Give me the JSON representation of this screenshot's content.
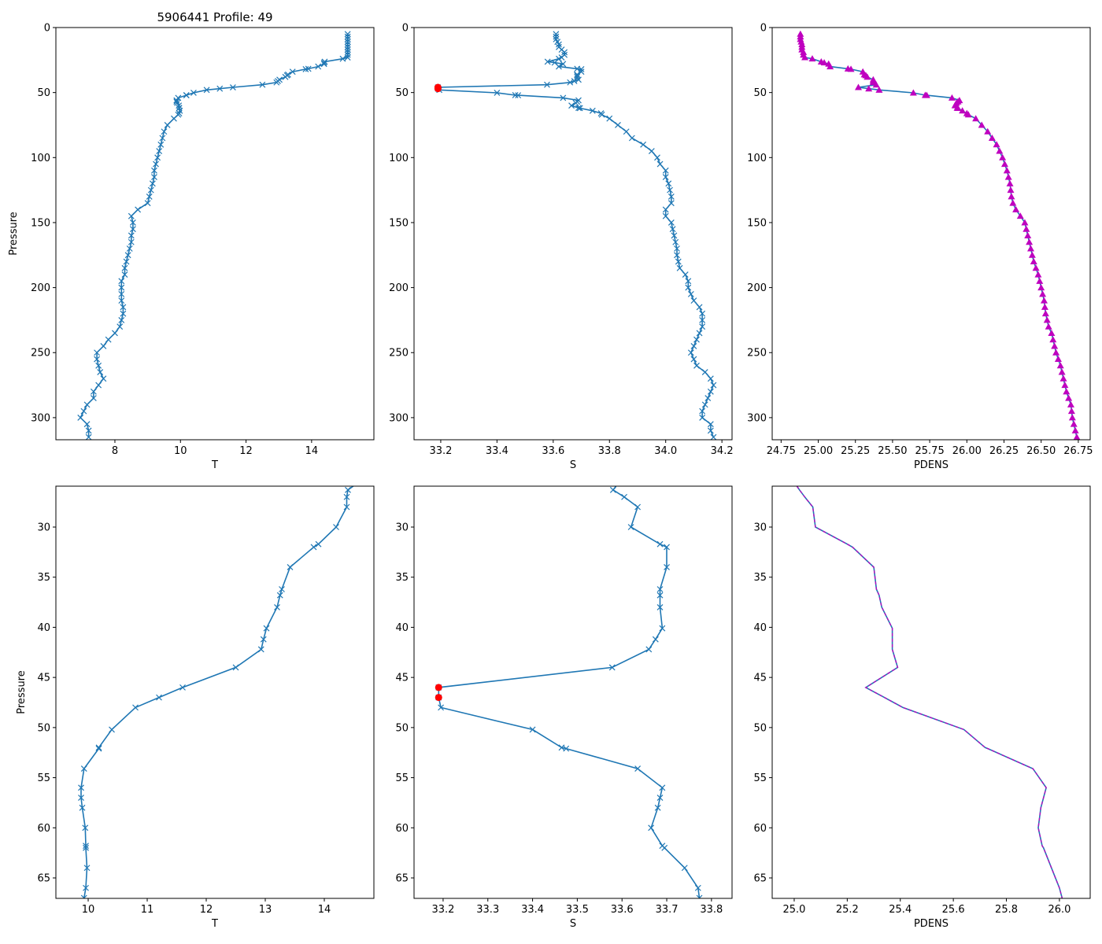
{
  "figure_title": "5906441 Profile: 49",
  "colors": {
    "line": "#1f77b4",
    "flag": "#ff0000",
    "density": "#bf00bf"
  },
  "chart_data": {
    "type": "line",
    "profile": {
      "pressure": [
        5,
        7,
        9,
        11,
        13,
        15,
        17,
        19,
        21,
        23,
        24,
        26.3,
        27,
        28,
        30,
        31.7,
        32,
        34,
        36.2,
        36.8,
        38,
        40.1,
        41.2,
        42.2,
        44,
        46,
        47,
        48,
        50.2,
        52,
        52.1,
        54.1,
        56,
        57,
        58,
        60,
        61.8,
        62,
        64,
        66,
        67,
        70,
        75,
        80,
        85,
        90,
        95,
        100,
        105,
        110,
        115,
        120,
        125,
        130,
        135,
        140,
        145,
        150,
        155,
        160,
        165,
        170,
        175,
        180,
        185,
        190,
        195,
        200,
        205,
        210,
        215,
        220,
        225,
        230,
        235,
        240,
        245,
        250,
        255,
        260,
        265,
        270,
        275,
        280,
        285,
        290,
        295,
        300,
        305,
        310,
        315
      ],
      "T": [
        15.1,
        15.1,
        15.1,
        15.1,
        15.1,
        15.1,
        15.1,
        15.1,
        15.1,
        15.1,
        14.95,
        14.4,
        14.38,
        14.38,
        14.2,
        13.9,
        13.82,
        13.42,
        13.28,
        13.25,
        13.2,
        13.02,
        12.97,
        12.93,
        12.5,
        11.6,
        11.2,
        10.8,
        10.4,
        10.18,
        10.18,
        9.93,
        9.88,
        9.88,
        9.9,
        9.95,
        9.96,
        9.96,
        9.98,
        9.96,
        9.93,
        9.8,
        9.6,
        9.5,
        9.45,
        9.4,
        9.35,
        9.3,
        9.25,
        9.2,
        9.2,
        9.15,
        9.1,
        9.05,
        9.0,
        8.7,
        8.5,
        8.55,
        8.55,
        8.5,
        8.5,
        8.45,
        8.4,
        8.35,
        8.3,
        8.3,
        8.2,
        8.2,
        8.2,
        8.2,
        8.25,
        8.25,
        8.2,
        8.15,
        8.0,
        7.8,
        7.65,
        7.45,
        7.45,
        7.5,
        7.55,
        7.65,
        7.5,
        7.35,
        7.35,
        7.15,
        7.05,
        6.95,
        7.15,
        7.2,
        7.2
      ],
      "S": [
        33.61,
        33.61,
        33.61,
        33.615,
        33.62,
        33.62,
        33.63,
        33.64,
        33.64,
        33.63,
        33.62,
        33.58,
        33.605,
        33.635,
        33.62,
        33.685,
        33.7,
        33.7,
        33.685,
        33.685,
        33.685,
        33.69,
        33.675,
        33.66,
        33.578,
        33.19,
        33.19,
        33.195,
        33.4,
        33.465,
        33.475,
        33.635,
        33.69,
        33.685,
        33.68,
        33.665,
        33.69,
        33.695,
        33.74,
        33.77,
        33.773,
        33.8,
        33.83,
        33.86,
        33.88,
        33.92,
        33.95,
        33.97,
        33.98,
        34.0,
        34.0,
        34.01,
        34.015,
        34.02,
        34.02,
        34.0,
        34.0,
        34.02,
        34.025,
        34.03,
        34.035,
        34.04,
        34.04,
        34.045,
        34.05,
        34.07,
        34.08,
        34.08,
        34.09,
        34.1,
        34.12,
        34.13,
        34.13,
        34.13,
        34.12,
        34.11,
        34.1,
        34.09,
        34.1,
        34.11,
        34.14,
        34.16,
        34.17,
        34.16,
        34.15,
        34.14,
        34.13,
        34.13,
        34.16,
        34.16,
        34.17
      ],
      "PDENS": [
        24.88,
        24.88,
        24.88,
        24.885,
        24.89,
        24.89,
        24.89,
        24.9,
        24.9,
        24.91,
        24.96,
        25.02,
        25.04,
        25.07,
        25.08,
        25.2,
        25.22,
        25.3,
        25.31,
        25.32,
        25.33,
        25.37,
        25.37,
        25.37,
        25.39,
        25.27,
        25.34,
        25.41,
        25.64,
        25.72,
        25.73,
        25.9,
        25.95,
        25.94,
        25.93,
        25.92,
        25.935,
        25.94,
        25.97,
        26.0,
        26.01,
        26.06,
        26.1,
        26.14,
        26.17,
        26.2,
        26.22,
        26.24,
        26.255,
        26.27,
        26.28,
        26.29,
        26.295,
        26.3,
        26.31,
        26.33,
        26.36,
        26.39,
        26.4,
        26.41,
        26.42,
        26.43,
        26.44,
        26.45,
        26.465,
        26.48,
        26.49,
        26.5,
        26.51,
        26.52,
        26.525,
        26.53,
        26.54,
        26.55,
        26.57,
        26.58,
        26.59,
        26.6,
        26.615,
        26.63,
        26.64,
        26.65,
        26.66,
        26.67,
        26.685,
        26.7,
        26.705,
        26.71,
        26.72,
        26.73,
        26.74
      ],
      "flagged_S_pressures": [
        46,
        47
      ]
    },
    "panels": [
      {
        "id": "top-T",
        "var": "T",
        "xlabel": "T",
        "ylabel": "Pressure",
        "xlim": [
          6.2,
          15.9
        ],
        "ylim": [
          317,
          0
        ],
        "xticks": [
          8,
          10,
          12,
          14
        ],
        "xticklabels": [
          "8",
          "10",
          "12",
          "14"
        ],
        "yticks": [
          0,
          50,
          100,
          150,
          200,
          250,
          300
        ],
        "yticklabels": [
          "0",
          "50",
          "100",
          "150",
          "200",
          "250",
          "300"
        ],
        "marker": "x",
        "title": "5906441 Profile: 49"
      },
      {
        "id": "top-S",
        "var": "S",
        "xlabel": "S",
        "ylabel": "",
        "xlim": [
          33.105,
          34.236
        ],
        "ylim": [
          317,
          0
        ],
        "xticks": [
          33.2,
          33.4,
          33.6,
          33.8,
          34.0,
          34.2
        ],
        "xticklabels": [
          "33.2",
          "33.4",
          "33.6",
          "33.8",
          "34.0",
          "34.2"
        ],
        "yticks": [
          0,
          50,
          100,
          150,
          200,
          250,
          300
        ],
        "yticklabels": [
          "0",
          "50",
          "100",
          "150",
          "200",
          "250",
          "300"
        ],
        "marker": "x",
        "flags": true
      },
      {
        "id": "top-PDENS",
        "var": "PDENS",
        "xlabel": "PDENS",
        "ylabel": "",
        "xlim": [
          24.69,
          26.83
        ],
        "ylim": [
          317,
          0
        ],
        "xticks": [
          24.75,
          25.0,
          25.25,
          25.5,
          25.75,
          26.0,
          26.25,
          26.5,
          26.75
        ],
        "xticklabels": [
          "24.75",
          "25.00",
          "25.25",
          "25.50",
          "25.75",
          "26.00",
          "26.25",
          "26.50",
          "26.75"
        ],
        "yticks": [
          0,
          50,
          100,
          150,
          200,
          250,
          300
        ],
        "yticklabels": [
          "0",
          "50",
          "100",
          "150",
          "200",
          "250",
          "300"
        ],
        "marker": "triangle"
      },
      {
        "id": "bottom-T",
        "var": "T",
        "xlabel": "T",
        "ylabel": "Pressure",
        "xlim": [
          9.453,
          14.84
        ],
        "ylim": [
          67.04,
          25.92
        ],
        "xticks": [
          10,
          11,
          12,
          13,
          14
        ],
        "xticklabels": [
          "10",
          "11",
          "12",
          "13",
          "14"
        ],
        "yticks": [
          30,
          35,
          40,
          45,
          50,
          55,
          60,
          65
        ],
        "yticklabels": [
          "30",
          "35",
          "40",
          "45",
          "50",
          "55",
          "60",
          "65"
        ],
        "marker": "x"
      },
      {
        "id": "bottom-S",
        "var": "S",
        "xlabel": "S",
        "ylabel": "",
        "xlim": [
          33.135,
          33.846
        ],
        "ylim": [
          67.04,
          25.92
        ],
        "xticks": [
          33.2,
          33.3,
          33.4,
          33.5,
          33.6,
          33.7,
          33.8
        ],
        "xticklabels": [
          "33.2",
          "33.3",
          "33.4",
          "33.5",
          "33.6",
          "33.7",
          "33.8"
        ],
        "yticks": [
          30,
          35,
          40,
          45,
          50,
          55,
          60,
          65
        ],
        "yticklabels": [
          "30",
          "35",
          "40",
          "45",
          "50",
          "55",
          "60",
          "65"
        ],
        "marker": "x",
        "flags": true
      },
      {
        "id": "bottom-PDENS",
        "var": "PDENS",
        "xlabel": "PDENS",
        "ylabel": "",
        "xlim": [
          24.917,
          26.116
        ],
        "ylim": [
          67.04,
          25.92
        ],
        "xticks": [
          25.0,
          25.2,
          25.4,
          25.6,
          25.8,
          26.0
        ],
        "xticklabels": [
          "25.0",
          "25.2",
          "25.4",
          "25.6",
          "25.8",
          "26.0"
        ],
        "yticks": [
          30,
          35,
          40,
          45,
          50,
          55,
          60,
          65
        ],
        "yticklabels": [
          "30",
          "35",
          "40",
          "45",
          "50",
          "55",
          "60",
          "65"
        ],
        "marker": "dashed"
      }
    ]
  }
}
